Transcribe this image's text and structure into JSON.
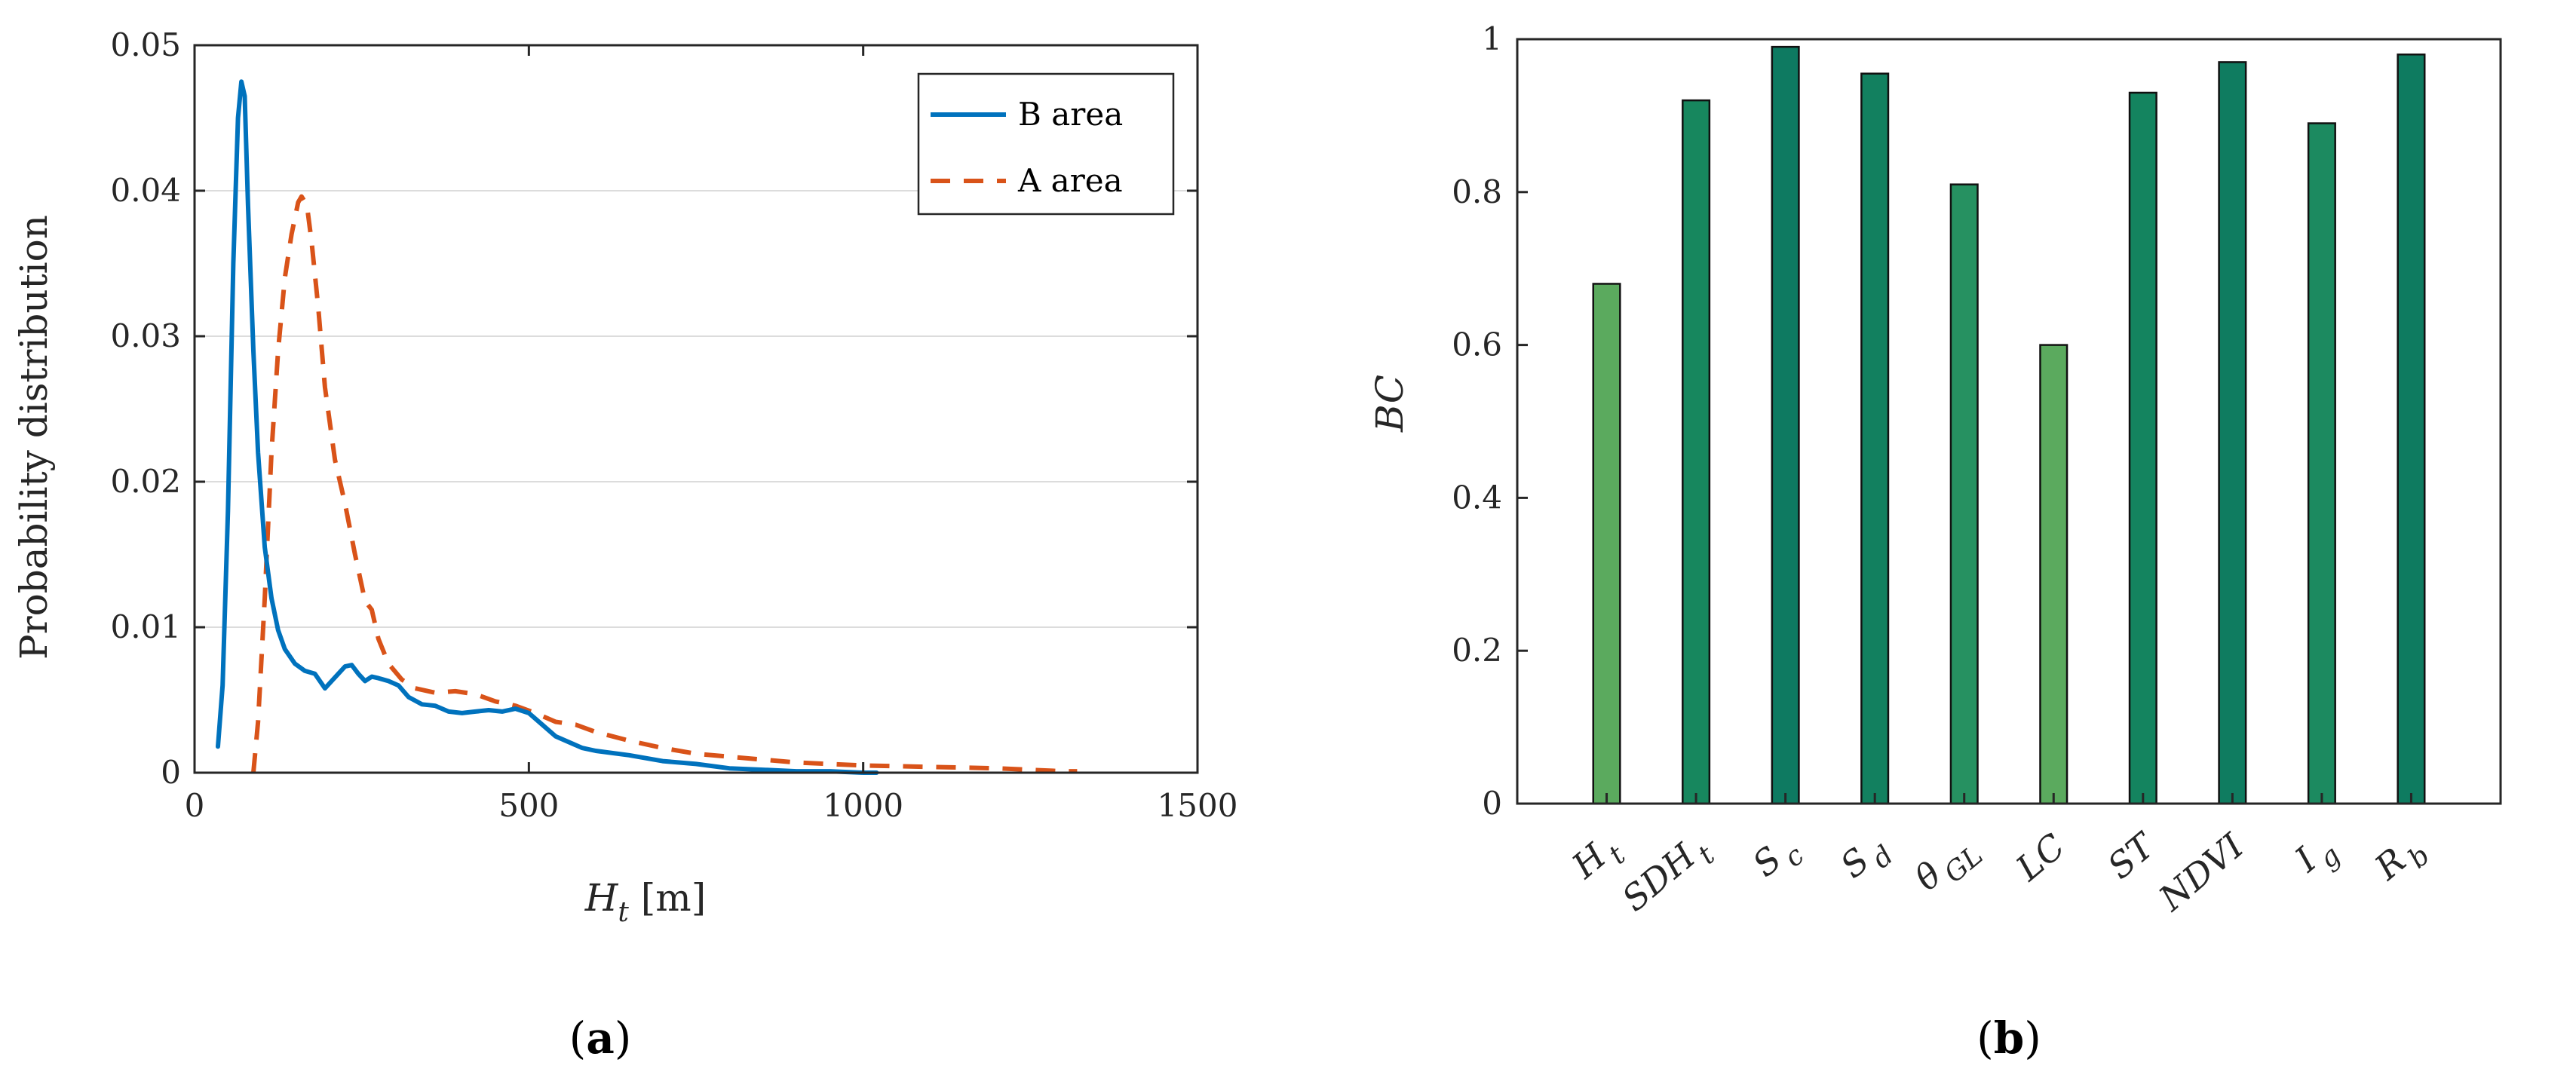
{
  "chart_data": [
    {
      "type": "line",
      "panel_caption": {
        "open": "(",
        "letter": "a",
        "close": ")"
      },
      "title": "",
      "xlabel": {
        "main": "H",
        "sub": "t",
        "unit": " [m]"
      },
      "ylabel": "Probability distribution",
      "xlim": [
        0,
        1500
      ],
      "ylim": [
        0,
        0.05
      ],
      "xticks": [
        0,
        500,
        1000,
        1500
      ],
      "xtick_labels": [
        "0",
        "500",
        "1000",
        "1500"
      ],
      "yticks": [
        0,
        0.01,
        0.02,
        0.03,
        0.04,
        0.05
      ],
      "ytick_labels": [
        "0",
        "0.01",
        "0.02",
        "0.03",
        "0.04",
        "0.05"
      ],
      "grid": "horizontal",
      "legend": "top-right",
      "series": [
        {
          "name": "B area",
          "color": "#0072BD",
          "style": "solid",
          "x": [
            35,
            42,
            50,
            58,
            65,
            70,
            75,
            80,
            88,
            95,
            105,
            115,
            125,
            135,
            150,
            165,
            180,
            195,
            205,
            215,
            225,
            235,
            245,
            255,
            265,
            275,
            290,
            305,
            320,
            340,
            360,
            380,
            400,
            420,
            440,
            460,
            480,
            500,
            520,
            540,
            560,
            580,
            600,
            650,
            700,
            750,
            800,
            850,
            900,
            950,
            1000,
            1020
          ],
          "y": [
            0.0018,
            0.006,
            0.018,
            0.035,
            0.045,
            0.0475,
            0.0465,
            0.039,
            0.029,
            0.022,
            0.0155,
            0.012,
            0.0098,
            0.0085,
            0.0075,
            0.007,
            0.0068,
            0.0058,
            0.0063,
            0.0068,
            0.0073,
            0.0074,
            0.0068,
            0.0063,
            0.0066,
            0.0065,
            0.0063,
            0.006,
            0.0052,
            0.0047,
            0.0046,
            0.0042,
            0.0041,
            0.0042,
            0.0043,
            0.0042,
            0.0044,
            0.0041,
            0.0033,
            0.0025,
            0.0021,
            0.0017,
            0.0015,
            0.0012,
            0.0008,
            0.0006,
            0.0003,
            0.0002,
            0.0001,
            0.0001,
            0.0,
            0.0
          ]
        },
        {
          "name": "A area",
          "color": "#D95319",
          "style": "dashed",
          "x": [
            88,
            95,
            105,
            115,
            125,
            135,
            145,
            155,
            160,
            168,
            175,
            185,
            195,
            210,
            225,
            240,
            255,
            265,
            275,
            290,
            310,
            330,
            360,
            390,
            420,
            450,
            480,
            510,
            540,
            570,
            600,
            650,
            700,
            750,
            800,
            900,
            1000,
            1100,
            1200,
            1300,
            1320
          ],
          "y": [
            0.0,
            0.0035,
            0.012,
            0.022,
            0.029,
            0.034,
            0.037,
            0.0392,
            0.0396,
            0.039,
            0.0365,
            0.032,
            0.0265,
            0.0215,
            0.0185,
            0.015,
            0.0118,
            0.0112,
            0.0092,
            0.0075,
            0.0064,
            0.0058,
            0.0055,
            0.0056,
            0.0054,
            0.0049,
            0.0046,
            0.0041,
            0.0035,
            0.0033,
            0.0028,
            0.0022,
            0.0017,
            0.0013,
            0.0011,
            0.0007,
            0.0005,
            0.0004,
            0.0003,
            0.0001,
            0.0001
          ]
        }
      ]
    },
    {
      "type": "bar",
      "panel_caption": {
        "open": "(",
        "letter": "b",
        "close": ")"
      },
      "title": "",
      "xlabel": "",
      "ylabel": "BC",
      "ylim": [
        0,
        1
      ],
      "yticks": [
        0,
        0.2,
        0.4,
        0.6,
        0.8,
        1
      ],
      "ytick_labels": [
        "0",
        "0.2",
        "0.4",
        "0.6",
        "0.8",
        "1"
      ],
      "categories": [
        {
          "main": "H",
          "sub": "t"
        },
        {
          "main": "SDH",
          "sub": "t"
        },
        {
          "main": "S",
          "sub": "c"
        },
        {
          "main": "S",
          "sub": "d"
        },
        {
          "main": "θ",
          "sub": "GL"
        },
        {
          "main": "LC",
          "sub": ""
        },
        {
          "main": "ST",
          "sub": ""
        },
        {
          "main": "NDVI",
          "sub": ""
        },
        {
          "main": "I",
          "sub": "g"
        },
        {
          "main": "R",
          "sub": "b"
        }
      ],
      "values": [
        0.68,
        0.92,
        0.99,
        0.955,
        0.81,
        0.6,
        0.93,
        0.97,
        0.89,
        0.98
      ],
      "bar_colors": [
        "#5BAA5E",
        "#17875E",
        "#0E7A61",
        "#12805F",
        "#269161",
        "#5BAA5E",
        "#14845F",
        "#0F7C60",
        "#1C8A60",
        "#0E7B60"
      ]
    }
  ]
}
